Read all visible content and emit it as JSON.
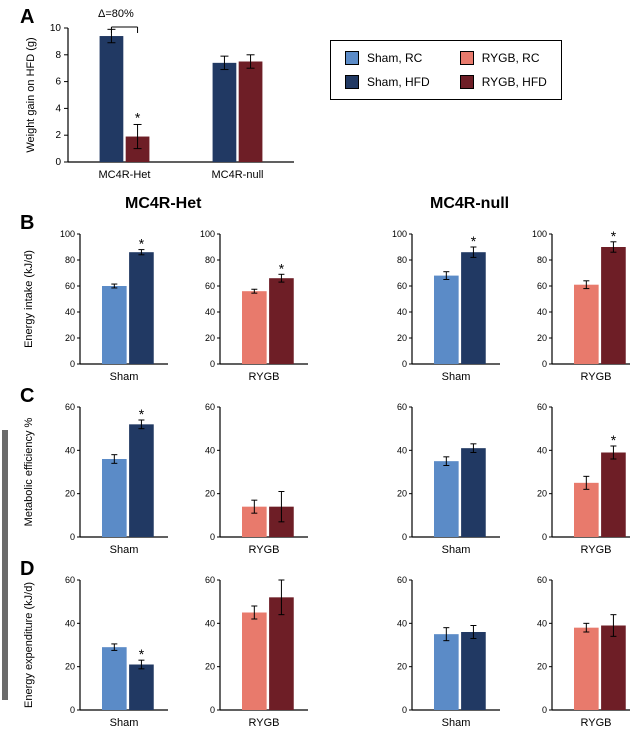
{
  "colors": {
    "sham_rc": "#5b8bc7",
    "sham_hfd": "#213963",
    "rygb_rc": "#e87a6c",
    "rygb_hfd": "#6e1e26",
    "axis": "#000000",
    "error": "#000000"
  },
  "legend": {
    "items": [
      {
        "label": "Sham, RC",
        "color_key": "sham_rc"
      },
      {
        "label": "Sham, HFD",
        "color_key": "sham_hfd"
      },
      {
        "label": "RYGB, RC",
        "color_key": "rygb_rc"
      },
      {
        "label": "RYGB, HFD",
        "color_key": "rygb_hfd"
      }
    ]
  },
  "genotypes": {
    "het": "MC4R-Het",
    "null": "MC4R-null"
  },
  "delta_label": "Δ=80%",
  "panelA": {
    "ylabel": "Weight gain on HFD (g)",
    "type": "bar",
    "y": {
      "min": 0,
      "max": 10,
      "step": 2
    },
    "categories": [
      "MC4R-Het",
      "MC4R-null"
    ],
    "bars": [
      {
        "group": 0,
        "value": 9.4,
        "err": 0.5,
        "color_key": "sham_hfd",
        "star": false
      },
      {
        "group": 0,
        "value": 1.9,
        "err": 0.9,
        "color_key": "rygb_hfd",
        "star": true
      },
      {
        "group": 1,
        "value": 7.4,
        "err": 0.5,
        "color_key": "sham_hfd",
        "star": false
      },
      {
        "group": 1,
        "value": 7.5,
        "err": 0.5,
        "color_key": "rygb_hfd",
        "star": false
      }
    ],
    "bar_width": 0.35,
    "label_fontsize": 11,
    "tick_fontsize": 10
  },
  "panelB": {
    "letter": "B",
    "ylabel": "Energy intake (kJ/d)",
    "y": {
      "min": 0,
      "max": 100,
      "step": 20
    },
    "label_fontsize": 11,
    "tick_fontsize": 9,
    "subplots": [
      {
        "cat": "Sham",
        "bars": [
          {
            "v": 60,
            "e": 1.5,
            "c": "sham_rc",
            "s": false
          },
          {
            "v": 86,
            "e": 2,
            "c": "sham_hfd",
            "s": true
          }
        ]
      },
      {
        "cat": "RYGB",
        "bars": [
          {
            "v": 56,
            "e": 1.5,
            "c": "rygb_rc",
            "s": false
          },
          {
            "v": 66,
            "e": 3,
            "c": "rygb_hfd",
            "s": true
          }
        ]
      },
      {
        "cat": "Sham",
        "bars": [
          {
            "v": 68,
            "e": 3,
            "c": "sham_rc",
            "s": false
          },
          {
            "v": 86,
            "e": 4,
            "c": "sham_hfd",
            "s": true
          }
        ]
      },
      {
        "cat": "RYGB",
        "bars": [
          {
            "v": 61,
            "e": 3,
            "c": "rygb_rc",
            "s": false
          },
          {
            "v": 90,
            "e": 4,
            "c": "rygb_hfd",
            "s": true
          }
        ]
      }
    ]
  },
  "panelC": {
    "letter": "C",
    "ylabel": "Metabolic efficiency %",
    "y": {
      "min": 0,
      "max": 60,
      "step": 20
    },
    "label_fontsize": 11,
    "tick_fontsize": 9,
    "subplots": [
      {
        "cat": "Sham",
        "bars": [
          {
            "v": 36,
            "e": 2,
            "c": "sham_rc",
            "s": false
          },
          {
            "v": 52,
            "e": 2,
            "c": "sham_hfd",
            "s": true
          }
        ]
      },
      {
        "cat": "RYGB",
        "bars": [
          {
            "v": 14,
            "e": 3,
            "c": "rygb_rc",
            "s": false
          },
          {
            "v": 14,
            "e": 7,
            "c": "rygb_hfd",
            "s": false
          }
        ]
      },
      {
        "cat": "Sham",
        "bars": [
          {
            "v": 35,
            "e": 2,
            "c": "sham_rc",
            "s": false
          },
          {
            "v": 41,
            "e": 2,
            "c": "sham_hfd",
            "s": false
          }
        ]
      },
      {
        "cat": "RYGB",
        "bars": [
          {
            "v": 25,
            "e": 3,
            "c": "rygb_rc",
            "s": false
          },
          {
            "v": 39,
            "e": 3,
            "c": "rygb_hfd",
            "s": true
          }
        ]
      }
    ]
  },
  "panelD": {
    "letter": "D",
    "ylabel": "Energy expenditure (kJ/d)",
    "y": {
      "min": 0,
      "max": 60,
      "step": 20
    },
    "label_fontsize": 11,
    "tick_fontsize": 9,
    "subplots": [
      {
        "cat": "Sham",
        "bars": [
          {
            "v": 29,
            "e": 1.5,
            "c": "sham_rc",
            "s": false
          },
          {
            "v": 21,
            "e": 2,
            "c": "sham_hfd",
            "s": true
          }
        ]
      },
      {
        "cat": "RYGB",
        "bars": [
          {
            "v": 45,
            "e": 3,
            "c": "rygb_rc",
            "s": false
          },
          {
            "v": 52,
            "e": 8,
            "c": "rygb_hfd",
            "s": false
          }
        ]
      },
      {
        "cat": "Sham",
        "bars": [
          {
            "v": 35,
            "e": 3,
            "c": "sham_rc",
            "s": false
          },
          {
            "v": 36,
            "e": 3,
            "c": "sham_hfd",
            "s": false
          }
        ]
      },
      {
        "cat": "RYGB",
        "bars": [
          {
            "v": 38,
            "e": 2,
            "c": "rygb_rc",
            "s": false
          },
          {
            "v": 39,
            "e": 5,
            "c": "rygb_hfd",
            "s": false
          }
        ]
      }
    ]
  }
}
